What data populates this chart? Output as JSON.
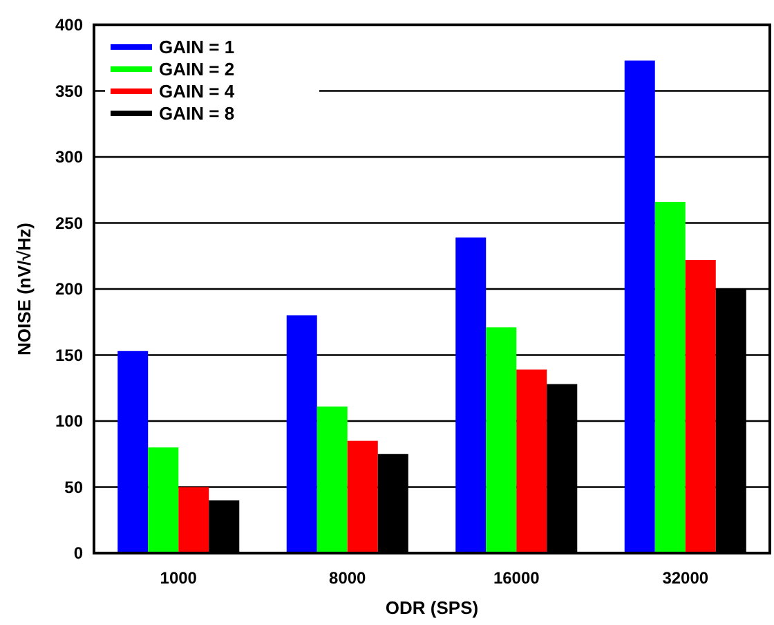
{
  "chart_data": {
    "type": "bar",
    "xlabel": "ODR (SPS)",
    "ylabel": "NOISE (nV/√Hz)",
    "categories": [
      "1000",
      "8000",
      "16000",
      "32000"
    ],
    "series": [
      {
        "name": "GAIN = 1",
        "color": "#0000ff",
        "values": [
          153,
          180,
          239,
          373
        ]
      },
      {
        "name": "GAIN = 2",
        "color": "#00ff00",
        "values": [
          80,
          111,
          171,
          266
        ]
      },
      {
        "name": "GAIN = 4",
        "color": "#ff0000",
        "values": [
          50,
          85,
          139,
          222
        ]
      },
      {
        "name": "GAIN = 8",
        "color": "#000000",
        "values": [
          40,
          75,
          128,
          200
        ]
      }
    ],
    "ylim": [
      0,
      400
    ],
    "yticks": [
      0,
      50,
      100,
      150,
      200,
      250,
      300,
      350,
      400
    ],
    "grid": "y",
    "legend": "top left"
  }
}
